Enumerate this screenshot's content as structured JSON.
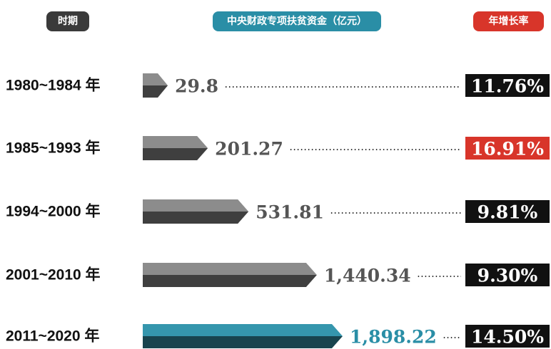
{
  "chart_data": {
    "type": "arrow-bar",
    "headers": [
      "时期",
      "中央财政专项扶贫资金（亿元）",
      "年增长率"
    ],
    "header_colors": [
      "#3a3a3a",
      "#2a8ea6",
      "#d8352a"
    ],
    "categories": [
      "1980~1984 年",
      "1985~1993 年",
      "1994~2000 年",
      "2001~2010 年",
      "2011~2020 年"
    ],
    "values": [
      29.8,
      201.27,
      531.81,
      1440.34,
      1898.22
    ],
    "value_labels": [
      "29.8",
      "201.27",
      "531.81",
      "1,440.34",
      "1,898.22"
    ],
    "xscale": "sqrt",
    "colors": [
      "#8c8c8c",
      "#8c8c8c",
      "#8c8c8c",
      "#8c8c8c",
      "#3596ad"
    ],
    "label_colors": [
      "#555555",
      "#555555",
      "#555555",
      "#555555",
      "#2a8ea6"
    ],
    "growth_rates": [
      11.76,
      16.91,
      9.81,
      9.3,
      14.5
    ],
    "growth_labels": [
      "11.76%",
      "16.91%",
      "9.81%",
      "9.30%",
      "14.50%"
    ],
    "growth_colors": [
      "#111111",
      "#d8352a",
      "#111111",
      "#111111",
      "#111111"
    ]
  }
}
